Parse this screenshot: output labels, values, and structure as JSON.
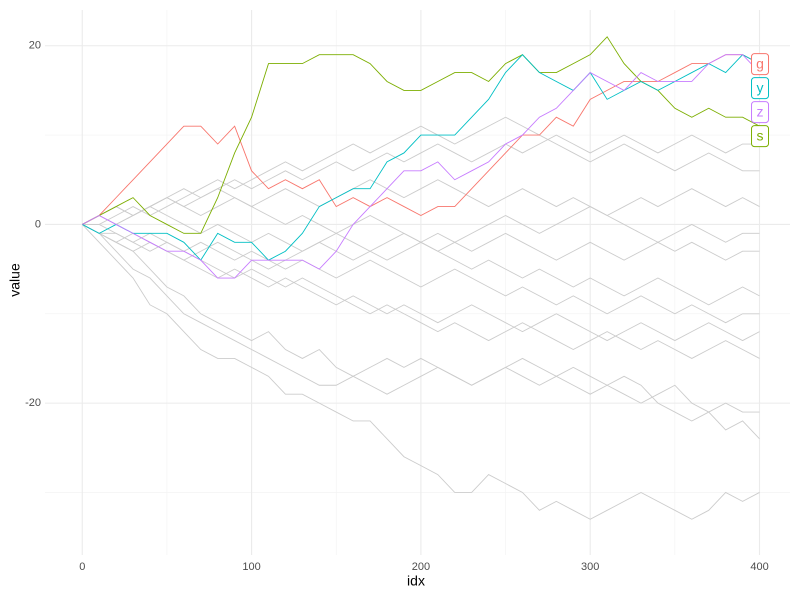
{
  "chart_data": {
    "type": "line",
    "x_label": "idx",
    "y_label": "value",
    "x": [
      0,
      10,
      20,
      30,
      40,
      50,
      60,
      70,
      80,
      90,
      100,
      110,
      120,
      130,
      140,
      150,
      160,
      170,
      180,
      190,
      200,
      210,
      220,
      230,
      240,
      250,
      260,
      270,
      280,
      290,
      300,
      310,
      320,
      330,
      340,
      350,
      360,
      370,
      380,
      390,
      400
    ],
    "xlim": [
      -22,
      418
    ],
    "xticks": [
      0,
      100,
      200,
      300,
      400
    ],
    "ylim": [
      -37,
      24
    ],
    "yticks": [
      -20,
      0,
      20
    ],
    "grid": true,
    "series": [
      {
        "color": "#cccccc",
        "values": [
          0,
          -2,
          -4,
          -6,
          -9,
          -10,
          -12,
          -14,
          -15,
          -15,
          -16,
          -17,
          -19,
          -19,
          -20,
          -21,
          -22,
          -22,
          -24,
          -26,
          -27,
          -28,
          -30,
          -30,
          -28,
          -29,
          -30,
          -32,
          -31,
          -32,
          -33,
          -32,
          -31,
          -30,
          -31,
          -32,
          -33,
          -32,
          -30,
          -31,
          -30
        ]
      },
      {
        "color": "#cccccc",
        "values": [
          0,
          -1,
          -3,
          -5,
          -6,
          -8,
          -10,
          -11,
          -12,
          -13,
          -14,
          -15,
          -16,
          -17,
          -18,
          -18,
          -17,
          -18,
          -19,
          -18,
          -17,
          -16,
          -17,
          -18,
          -17,
          -16,
          -17,
          -18,
          -17,
          -16,
          -17,
          -18,
          -19,
          -20,
          -19,
          -18,
          -20,
          -21,
          -23,
          -22,
          -24
        ]
      },
      {
        "color": "#cccccc",
        "values": [
          0,
          -1,
          -2,
          -3,
          -5,
          -7,
          -8,
          -10,
          -11,
          -12,
          -13,
          -12,
          -14,
          -15,
          -14,
          -16,
          -17,
          -16,
          -15,
          -16,
          -15,
          -16,
          -17,
          -18,
          -17,
          -16,
          -15,
          -16,
          -17,
          -18,
          -19,
          -18,
          -17,
          -18,
          -20,
          -21,
          -22,
          -21,
          -20,
          -21,
          -21
        ]
      },
      {
        "color": "#cccccc",
        "values": [
          0,
          -1,
          -1,
          -2,
          -3,
          -2,
          -3,
          -4,
          -5,
          -6,
          -5,
          -6,
          -7,
          -6,
          -7,
          -8,
          -9,
          -10,
          -9,
          -10,
          -11,
          -12,
          -11,
          -12,
          -13,
          -12,
          -11,
          -12,
          -13,
          -14,
          -13,
          -12,
          -13,
          -14,
          -13,
          -14,
          -15,
          -14,
          -13,
          -14,
          -15
        ]
      },
      {
        "color": "#cccccc",
        "values": [
          0,
          0,
          -1,
          -2,
          -1,
          -2,
          -3,
          -2,
          -3,
          -4,
          -3,
          -4,
          -5,
          -4,
          -5,
          -6,
          -5,
          -4,
          -5,
          -6,
          -7,
          -6,
          -5,
          -6,
          -7,
          -8,
          -7,
          -8,
          -9,
          -8,
          -9,
          -10,
          -9,
          -8,
          -9,
          -10,
          -9,
          -10,
          -11,
          -10,
          -10
        ]
      },
      {
        "color": "#cccccc",
        "values": [
          0,
          1,
          0,
          1,
          2,
          1,
          0,
          -1,
          0,
          -1,
          -2,
          -1,
          -2,
          -3,
          -2,
          -1,
          -2,
          -3,
          -4,
          -3,
          -2,
          -3,
          -4,
          -5,
          -4,
          -5,
          -6,
          -5,
          -6,
          -7,
          -6,
          -7,
          -8,
          -7,
          -6,
          -7,
          -8,
          -9,
          -8,
          -7,
          -8
        ]
      },
      {
        "color": "#cccccc",
        "values": [
          0,
          1,
          2,
          1,
          2,
          3,
          2,
          1,
          2,
          3,
          2,
          1,
          0,
          1,
          0,
          -1,
          0,
          1,
          0,
          -1,
          -2,
          -1,
          -2,
          -3,
          -2,
          -1,
          -2,
          -3,
          -4,
          -3,
          -2,
          -3,
          -4,
          -3,
          -2,
          -3,
          -2,
          -3,
          -4,
          -3,
          -3
        ]
      },
      {
        "color": "#cccccc",
        "values": [
          0,
          1,
          0,
          1,
          2,
          3,
          2,
          3,
          4,
          3,
          2,
          3,
          4,
          3,
          2,
          3,
          4,
          5,
          4,
          3,
          4,
          5,
          4,
          3,
          2,
          3,
          4,
          3,
          2,
          3,
          2,
          1,
          2,
          3,
          2,
          3,
          4,
          3,
          2,
          3,
          2
        ]
      },
      {
        "color": "#cccccc",
        "values": [
          0,
          1,
          2,
          1,
          2,
          3,
          4,
          3,
          4,
          5,
          4,
          5,
          6,
          5,
          6,
          7,
          6,
          7,
          8,
          7,
          8,
          9,
          8,
          7,
          8,
          9,
          8,
          9,
          10,
          9,
          8,
          9,
          10,
          9,
          8,
          9,
          10,
          9,
          8,
          9,
          9
        ]
      },
      {
        "color": "#cccccc",
        "values": [
          0,
          0,
          1,
          2,
          1,
          2,
          3,
          4,
          5,
          4,
          5,
          6,
          7,
          6,
          7,
          8,
          9,
          8,
          9,
          10,
          11,
          10,
          9,
          10,
          11,
          12,
          11,
          10,
          9,
          8,
          7,
          8,
          9,
          8,
          7,
          6,
          7,
          8,
          7,
          6,
          6
        ]
      },
      {
        "color": "#cccccc",
        "values": [
          0,
          -1,
          -2,
          -3,
          -2,
          -3,
          -4,
          -3,
          -2,
          -3,
          -4,
          -5,
          -4,
          -3,
          -2,
          -3,
          -4,
          -3,
          -2,
          -1,
          -2,
          -3,
          -2,
          -1,
          0,
          1,
          0,
          -1,
          0,
          1,
          2,
          1,
          0,
          -1,
          -2,
          -1,
          0,
          -1,
          -2,
          -1,
          -1
        ]
      },
      {
        "color": "#cccccc",
        "values": [
          0,
          -1,
          -2,
          -1,
          -2,
          -3,
          -4,
          -5,
          -6,
          -5,
          -6,
          -7,
          -6,
          -7,
          -8,
          -9,
          -8,
          -9,
          -10,
          -9,
          -10,
          -11,
          -10,
          -9,
          -10,
          -11,
          -12,
          -11,
          -10,
          -11,
          -12,
          -13,
          -12,
          -11,
          -12,
          -13,
          -12,
          -11,
          -12,
          -13,
          -12
        ]
      },
      {
        "name": "g",
        "color": "#F8766D",
        "values": [
          0,
          1,
          3,
          5,
          7,
          9,
          11,
          11,
          9,
          11,
          6,
          4,
          5,
          4,
          5,
          2,
          3,
          2,
          3,
          2,
          1,
          2,
          2,
          4,
          6,
          8,
          10,
          10,
          12,
          11,
          14,
          15,
          16,
          16,
          16,
          17,
          18,
          18,
          19,
          19,
          18
        ]
      },
      {
        "name": "s",
        "color": "#7CAE00",
        "values": [
          0,
          1,
          2,
          3,
          1,
          0,
          -1,
          -1,
          3,
          8,
          12,
          18,
          18,
          18,
          19,
          19,
          19,
          18,
          16,
          15,
          15,
          16,
          17,
          17,
          16,
          18,
          19,
          17,
          17,
          18,
          19,
          21,
          18,
          16,
          15,
          13,
          12,
          13,
          12,
          12,
          11
        ]
      },
      {
        "name": "y",
        "color": "#00BFC4",
        "values": [
          0,
          -1,
          0,
          -1,
          -1,
          -1,
          -2,
          -4,
          -1,
          -2,
          -2,
          -4,
          -3,
          -1,
          2,
          3,
          4,
          4,
          7,
          8,
          10,
          10,
          10,
          12,
          14,
          17,
          19,
          17,
          16,
          15,
          17,
          14,
          15,
          16,
          15,
          16,
          17,
          18,
          17,
          19,
          18
        ]
      },
      {
        "name": "z",
        "color": "#C77CFF",
        "values": [
          0,
          1,
          0,
          -1,
          -2,
          -3,
          -3,
          -4,
          -6,
          -6,
          -4,
          -4,
          -4,
          -4,
          -5,
          -3,
          0,
          2,
          4,
          6,
          6,
          7,
          5,
          6,
          7,
          9,
          10,
          12,
          13,
          15,
          17,
          16,
          15,
          17,
          16,
          16,
          16,
          18,
          19,
          19,
          17
        ]
      }
    ]
  }
}
